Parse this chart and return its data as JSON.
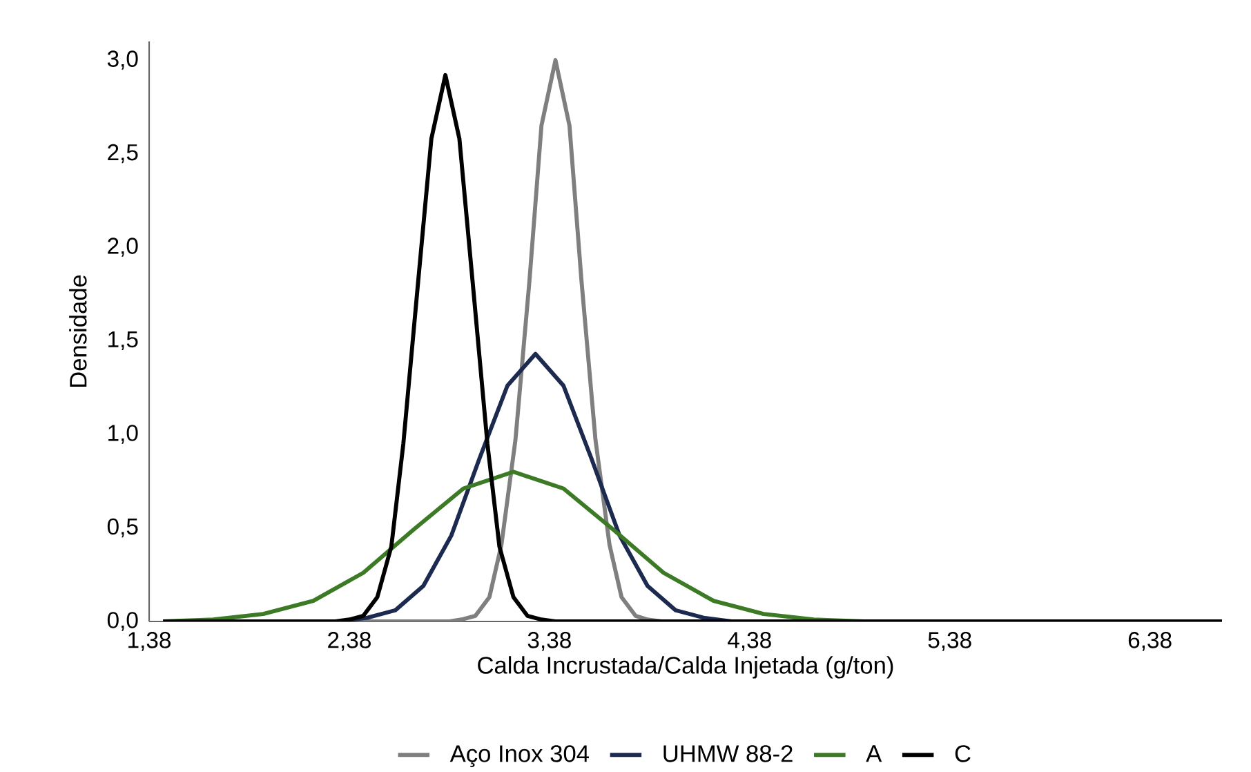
{
  "chart_data": {
    "type": "line",
    "xlabel": "Calda Incrustada/Calda Injetada (g/ton)",
    "ylabel": "Densidade",
    "xlim": [
      1.38,
      6.74
    ],
    "ylim": [
      0,
      3.1
    ],
    "xticks": [
      {
        "value": 1.38,
        "label": "1,38"
      },
      {
        "value": 2.38,
        "label": "2,38"
      },
      {
        "value": 3.38,
        "label": "3,38"
      },
      {
        "value": 4.38,
        "label": "4,38"
      },
      {
        "value": 5.38,
        "label": "5,38"
      },
      {
        "value": 6.38,
        "label": "6,38"
      }
    ],
    "yticks": [
      {
        "value": 0,
        "label": "0,0"
      },
      {
        "value": 0.5,
        "label": "0,5"
      },
      {
        "value": 1,
        "label": "1,0"
      },
      {
        "value": 1.5,
        "label": "1,5"
      },
      {
        "value": 2,
        "label": "2,0"
      },
      {
        "value": 2.5,
        "label": "2,5"
      },
      {
        "value": 3,
        "label": "3,0"
      }
    ],
    "grid": false,
    "legend": "bottom",
    "marker": "none",
    "line_style": "solid",
    "series": [
      {
        "name": "Aço Inox 304",
        "color": "#7f7f7f",
        "x": [
          1.45,
          2.88,
          2.94,
          3.01,
          3.08,
          3.14,
          3.21,
          3.28,
          3.34,
          3.41,
          3.48,
          3.54,
          3.61,
          3.68,
          3.74,
          3.81,
          3.87,
          3.94,
          6.74
        ],
        "values": [
          0,
          0.0,
          0.01,
          0.03,
          0.13,
          0.41,
          0.97,
          1.82,
          2.65,
          3.0,
          2.65,
          1.82,
          0.97,
          0.41,
          0.13,
          0.03,
          0.01,
          0.0,
          0
        ]
      },
      {
        "name": "UHMW 88-2",
        "color": "#1b2a4e",
        "x": [
          1.45,
          2.19,
          2.33,
          2.47,
          2.61,
          2.75,
          2.89,
          3.03,
          3.17,
          3.31,
          3.45,
          3.59,
          3.73,
          3.87,
          4.01,
          4.15,
          4.29,
          4.43,
          6.74
        ],
        "values": [
          0,
          0.0,
          0.0,
          0.02,
          0.06,
          0.19,
          0.46,
          0.87,
          1.26,
          1.43,
          1.26,
          0.87,
          0.46,
          0.19,
          0.06,
          0.02,
          0.0,
          0.0,
          0
        ]
      },
      {
        "name": "A",
        "color": "#3d7a26",
        "x": [
          1.45,
          1.7,
          1.95,
          2.2,
          2.45,
          2.7,
          2.95,
          3.2,
          3.45,
          3.7,
          3.95,
          4.2,
          4.45,
          4.7,
          4.95,
          5.2,
          6.74
        ],
        "values": [
          0.0,
          0.01,
          0.04,
          0.11,
          0.26,
          0.49,
          0.71,
          0.8,
          0.71,
          0.49,
          0.26,
          0.11,
          0.04,
          0.01,
          0.0,
          0.0,
          0
        ]
      },
      {
        "name": "C",
        "color": "#000000",
        "x": [
          1.45,
          2.31,
          2.38,
          2.45,
          2.52,
          2.59,
          2.65,
          2.72,
          2.79,
          2.86,
          2.93,
          3.0,
          3.07,
          3.13,
          3.2,
          3.27,
          3.34,
          3.41,
          6.74
        ],
        "values": [
          0,
          0.0,
          0.01,
          0.03,
          0.13,
          0.4,
          0.95,
          1.77,
          2.58,
          2.92,
          2.58,
          1.77,
          0.95,
          0.4,
          0.13,
          0.03,
          0.01,
          0.0,
          0
        ]
      }
    ]
  }
}
